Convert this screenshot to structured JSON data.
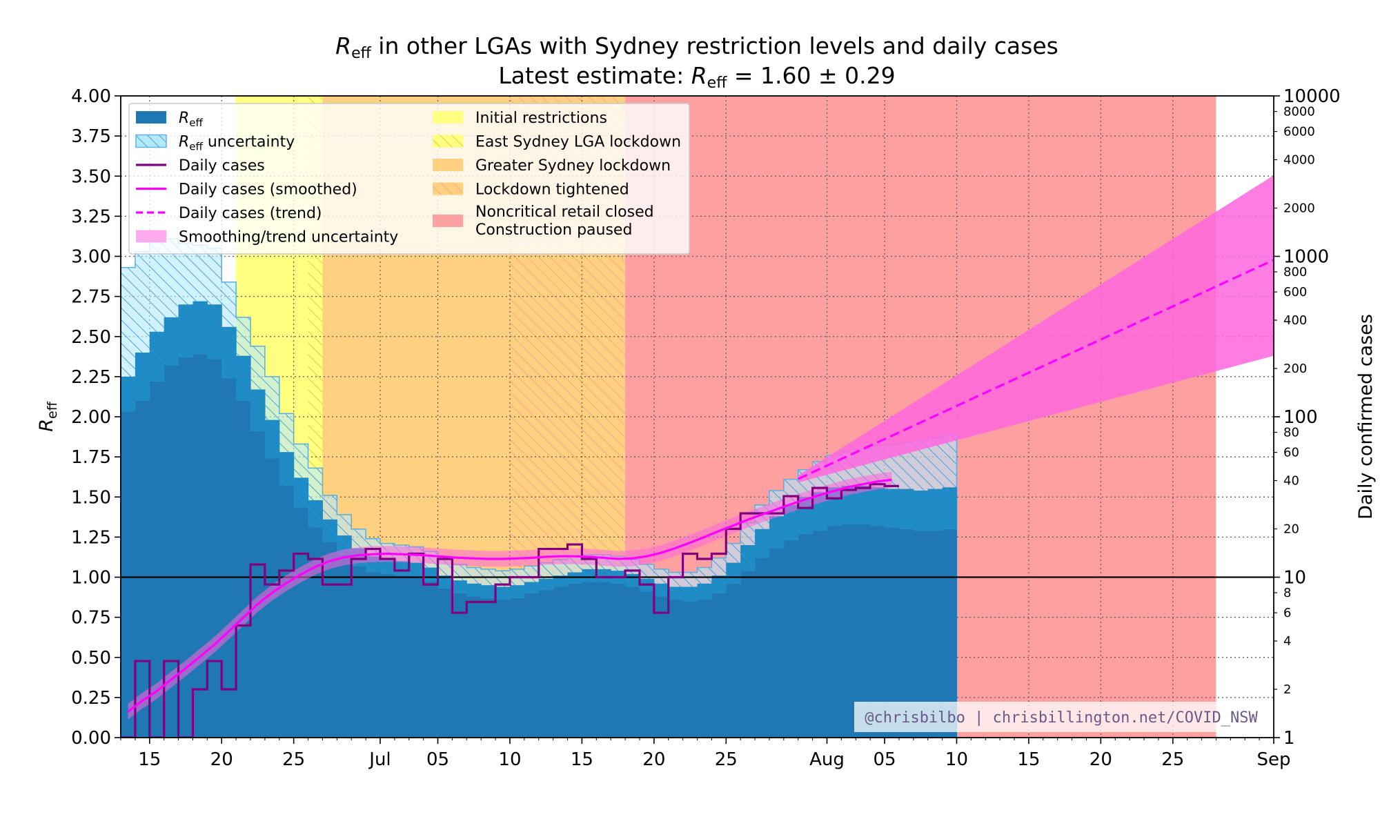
{
  "chart_data": {
    "type": "bar",
    "title": "R_eff in other LGAs with Sydney restriction levels and daily cases",
    "title_parts": {
      "r": "R",
      "sub": "eff",
      "rest": " in other LGAs with Sydney restriction levels and daily cases"
    },
    "subtitle_parts": {
      "prefix": "Latest estimate: ",
      "r": "R",
      "sub": "eff",
      "value": " = 1.60 ± 0.29"
    },
    "ylabel_left": {
      "r": "R",
      "sub": "eff"
    },
    "ylabel_right": "Daily confirmed cases",
    "ylim_left": [
      0,
      4
    ],
    "ylim_right": [
      1,
      10000
    ],
    "right_scale": "log",
    "grid": true,
    "legend_position": "upper-left",
    "x_start": "2021-06-13",
    "x_end": "2021-09-01",
    "x_ticks": [
      {
        "date": "2021-06-15",
        "label": "15"
      },
      {
        "date": "2021-06-20",
        "label": "20"
      },
      {
        "date": "2021-06-25",
        "label": "25"
      },
      {
        "date": "2021-07-01",
        "label": "Jul"
      },
      {
        "date": "2021-07-05",
        "label": "05"
      },
      {
        "date": "2021-07-10",
        "label": "10"
      },
      {
        "date": "2021-07-15",
        "label": "15"
      },
      {
        "date": "2021-07-20",
        "label": "20"
      },
      {
        "date": "2021-07-25",
        "label": "25"
      },
      {
        "date": "2021-08-01",
        "label": "Aug"
      },
      {
        "date": "2021-08-05",
        "label": "05"
      },
      {
        "date": "2021-08-10",
        "label": "10"
      },
      {
        "date": "2021-08-15",
        "label": "15"
      },
      {
        "date": "2021-08-20",
        "label": "20"
      },
      {
        "date": "2021-08-25",
        "label": "25"
      },
      {
        "date": "2021-09-01",
        "label": "Sep"
      }
    ],
    "y_ticks_left": [
      "0.00",
      "0.25",
      "0.50",
      "0.75",
      "1.00",
      "1.25",
      "1.50",
      "1.75",
      "2.00",
      "2.25",
      "2.50",
      "2.75",
      "3.00",
      "3.25",
      "3.50",
      "3.75",
      "4.00"
    ],
    "y_ticks_right_major": [
      {
        "v": 1,
        "label": "1"
      },
      {
        "v": 10,
        "label": "10"
      },
      {
        "v": 100,
        "label": "100"
      },
      {
        "v": 1000,
        "label": "1000"
      },
      {
        "v": 10000,
        "label": "10000"
      }
    ],
    "y_ticks_right_minor": [
      {
        "v": 2,
        "label": "2"
      },
      {
        "v": 4,
        "label": "4"
      },
      {
        "v": 6,
        "label": "6"
      },
      {
        "v": 8,
        "label": "8"
      },
      {
        "v": 20,
        "label": "20"
      },
      {
        "v": 40,
        "label": "40"
      },
      {
        "v": 60,
        "label": "60"
      },
      {
        "v": 80,
        "label": "80"
      },
      {
        "v": 200,
        "label": "200"
      },
      {
        "v": 400,
        "label": "400"
      },
      {
        "v": 600,
        "label": "600"
      },
      {
        "v": 800,
        "label": "800"
      },
      {
        "v": 2000,
        "label": "2000"
      },
      {
        "v": 4000,
        "label": "4000"
      },
      {
        "v": 6000,
        "label": "6000"
      },
      {
        "v": 8000,
        "label": "8000"
      }
    ],
    "restriction_periods": [
      {
        "name": "Initial restrictions",
        "start": "2021-06-21",
        "end": "2021-06-27",
        "color": "#ffff80",
        "hatch": false
      },
      {
        "name": "East Sydney LGA lockdown",
        "start": "2021-06-26",
        "end": "2021-06-27",
        "color": "#ffff80",
        "hatch": true
      },
      {
        "name": "Greater Sydney lockdown",
        "start": "2021-06-27",
        "end": "2021-07-18",
        "color": "#ffd080",
        "hatch": false
      },
      {
        "name": "Lockdown tightened",
        "start": "2021-07-10",
        "end": "2021-07-18",
        "color": "#ffd080",
        "hatch": true
      },
      {
        "name": "Noncritical retail closed / Construction paused",
        "start": "2021-07-18",
        "end": "2021-08-28",
        "color": "#ffa0a0",
        "hatch": false
      }
    ],
    "reff_series": {
      "start": "2021-06-13",
      "values": [
        2.25,
        2.4,
        2.53,
        2.62,
        2.7,
        2.72,
        2.7,
        2.56,
        2.38,
        2.17,
        1.98,
        1.78,
        1.62,
        1.48,
        1.36,
        1.26,
        1.18,
        1.13,
        1.11,
        1.1,
        1.09,
        1.06,
        1.01,
        0.98,
        0.96,
        0.95,
        0.94,
        0.95,
        0.97,
        0.99,
        1.01,
        1.03,
        1.05,
        1.05,
        1.04,
        1.02,
        0.99,
        0.96,
        0.94,
        0.94,
        0.96,
        1.01,
        1.09,
        1.2,
        1.3,
        1.38,
        1.45,
        1.5,
        1.53,
        1.56,
        1.57,
        1.57,
        1.56,
        1.55,
        1.55,
        1.54,
        1.55,
        1.56
      ],
      "lower": [
        2.03,
        2.1,
        2.22,
        2.32,
        2.37,
        2.39,
        2.36,
        2.24,
        2.1,
        1.91,
        1.74,
        1.57,
        1.43,
        1.31,
        1.22,
        1.14,
        1.07,
        1.03,
        1.02,
        1.01,
        1.0,
        0.97,
        0.93,
        0.9,
        0.88,
        0.87,
        0.86,
        0.87,
        0.9,
        0.92,
        0.94,
        0.96,
        0.97,
        0.97,
        0.96,
        0.94,
        0.91,
        0.88,
        0.86,
        0.85,
        0.86,
        0.9,
        0.96,
        1.04,
        1.12,
        1.18,
        1.23,
        1.27,
        1.29,
        1.32,
        1.33,
        1.33,
        1.32,
        1.31,
        1.3,
        1.29,
        1.29,
        1.3
      ],
      "upper": [
        2.48,
        2.6,
        2.73,
        2.85,
        2.92,
        2.92,
        2.88,
        2.7,
        2.6,
        2.44,
        2.25,
        2.02,
        1.83,
        1.68,
        1.51,
        1.39,
        1.3,
        1.24,
        1.21,
        1.2,
        1.19,
        1.16,
        1.11,
        1.08,
        1.06,
        1.05,
        1.04,
        1.05,
        1.07,
        1.09,
        1.11,
        1.13,
        1.14,
        1.14,
        1.13,
        1.11,
        1.08,
        1.05,
        1.03,
        1.03,
        1.06,
        1.12,
        1.21,
        1.34,
        1.45,
        1.54,
        1.61,
        1.67,
        1.72,
        1.76,
        1.78,
        1.8,
        1.82,
        1.83,
        1.84,
        1.85,
        1.87,
        1.89
      ],
      "upper_outer": [
        2.93,
        3.03,
        3.13,
        3.11,
        3.08,
        3.07,
        3.05,
        2.84,
        2.62,
        2.44,
        2.25,
        2.02,
        1.83,
        1.68,
        1.51,
        1.39,
        1.3,
        1.24,
        1.21,
        1.2,
        1.19,
        1.16,
        1.11,
        1.08,
        1.06,
        1.05,
        1.04,
        1.05,
        1.07,
        1.09,
        1.11,
        1.13,
        1.14,
        1.14,
        1.13,
        1.11,
        1.08,
        1.05,
        1.03,
        1.03,
        1.06,
        1.12,
        1.21,
        1.34,
        1.45,
        1.54,
        1.61,
        1.67,
        1.72,
        1.76,
        1.78,
        1.8,
        1.82,
        1.83,
        1.84,
        1.85,
        1.87,
        1.89
      ]
    },
    "daily_cases": {
      "start": "2021-06-13",
      "values": [
        1,
        3,
        1,
        3,
        1,
        2,
        3,
        2,
        5,
        12,
        9,
        11,
        14,
        13,
        9,
        9,
        13,
        15,
        13,
        11,
        14,
        9,
        13,
        6,
        7,
        7,
        9,
        10,
        10,
        15,
        15,
        16,
        13,
        10,
        10,
        11,
        9,
        6,
        10,
        14,
        13,
        14,
        20,
        25,
        25,
        25,
        32,
        27,
        36,
        31,
        35,
        36,
        38,
        37
      ],
      "smoothed": [
        1.45,
        1.7,
        1.95,
        2.3,
        2.7,
        3.2,
        3.8,
        4.6,
        5.6,
        6.8,
        8.0,
        9.2,
        10.4,
        11.6,
        12.6,
        13.3,
        13.7,
        13.9,
        14.0,
        13.9,
        13.8,
        13.6,
        13.4,
        13.2,
        13.1,
        13.0,
        13.0,
        13.1,
        13.2,
        13.4,
        13.5,
        13.5,
        13.4,
        13.2,
        13.0,
        13.1,
        13.5,
        14.2,
        15.2,
        16.4,
        17.8,
        19.4,
        21.0,
        22.8,
        24.6,
        26.5,
        28.5,
        30.5,
        32.5,
        34.5,
        36.5,
        38.0,
        39.5,
        40.5
      ],
      "trend": {
        "start": "2021-07-30",
        "end": "2021-09-01",
        "start_value": 41,
        "end_value": 950,
        "end_lower": 240,
        "end_upper": 3200
      }
    },
    "legend": [
      {
        "label_r": "R",
        "label_sub": "eff",
        "label_rest": "",
        "kind": "bar"
      },
      {
        "label_r": "R",
        "label_sub": "eff",
        "label_rest": " uncertainty",
        "kind": "hatch-blue"
      },
      {
        "label": "Daily cases",
        "kind": "line-purple"
      },
      {
        "label": "Daily cases (smoothed)",
        "kind": "line-magenta"
      },
      {
        "label": "Daily cases (trend)",
        "kind": "dash-magenta"
      },
      {
        "label": "Smoothing/trend uncertainty",
        "kind": "fill-pink"
      },
      {
        "label": "Initial restrictions",
        "kind": "patch-yellow"
      },
      {
        "label": "East Sydney LGA lockdown",
        "kind": "patch-yellow-hatch"
      },
      {
        "label": "Greater Sydney lockdown",
        "kind": "patch-orange"
      },
      {
        "label": "Lockdown tightened",
        "kind": "patch-orange-hatch"
      },
      {
        "label": "Noncritical retail closed",
        "label2": "Construction paused",
        "kind": "patch-red"
      }
    ],
    "credit": "@chrisbilbo | chrisbillington.net/COVID_NSW",
    "colors": {
      "reff": "#1f77b4",
      "reff_unc": "#b3eaff",
      "cases": "#800080",
      "smoothed": "#ff00ff",
      "trend_fill": "#ff66dd"
    }
  }
}
